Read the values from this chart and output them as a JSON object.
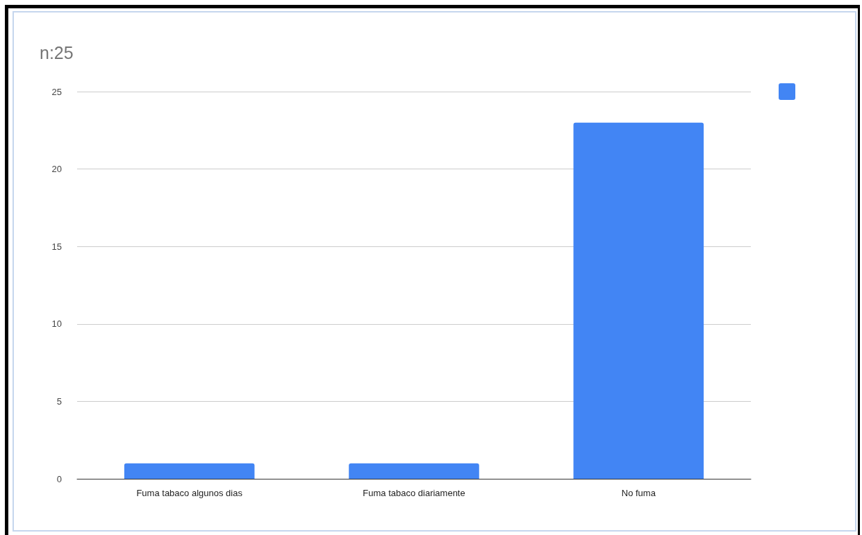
{
  "chart_data": {
    "type": "bar",
    "title": "n:25",
    "categories": [
      "Fuma tabaco algunos dias",
      "Fuma tabaco diariamente",
      "No fuma"
    ],
    "series": [
      {
        "color": "#4285f4",
        "values": [
          1,
          1,
          23
        ]
      }
    ],
    "ylim": [
      0,
      25
    ],
    "yticks": [
      0,
      5,
      10,
      15,
      20,
      25
    ],
    "grid": "y"
  }
}
